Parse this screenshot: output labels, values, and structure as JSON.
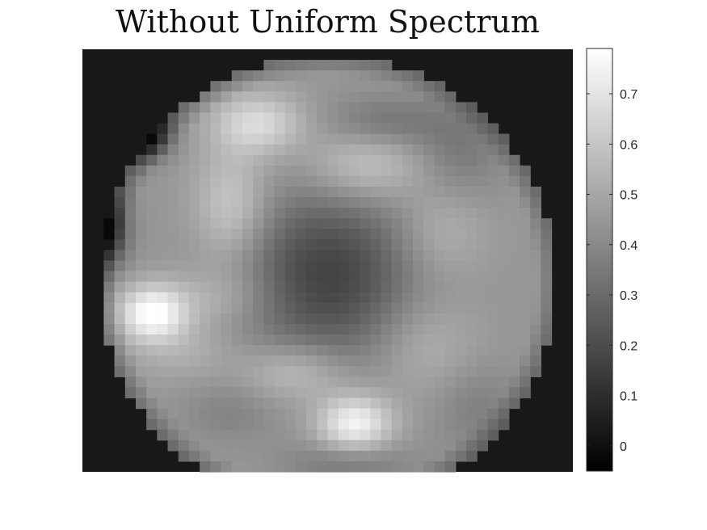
{
  "chart_data": {
    "type": "heatmap",
    "title": "Without Uniform Spectrum",
    "xlabel": "",
    "ylabel": "",
    "grid": false,
    "colormap": "gray",
    "grid_size": [
      46,
      40
    ],
    "background_value": 0.03,
    "clim": [
      -0.05,
      0.79
    ],
    "colorbar": {
      "placement": "right",
      "ticks": [
        0,
        0.1,
        0.2,
        0.3,
        0.4,
        0.5,
        0.6,
        0.7
      ],
      "tick_labels": [
        "0",
        "0.1",
        "0.2",
        "0.3",
        "0.4",
        "0.5",
        "0.6",
        "0.7"
      ]
    },
    "disc": {
      "center": [
        22.5,
        21.5
      ],
      "radius": 21.5
    },
    "features": [
      {
        "kind": "base",
        "value": 0.45
      },
      {
        "kind": "dip",
        "center": [
          22.5,
          21.0
        ],
        "spread": [
          6.0,
          6.0
        ],
        "amplitude": 0.28
      },
      {
        "kind": "peak",
        "center": [
          6.0,
          24.5
        ],
        "spread": [
          2.2,
          1.8
        ],
        "amplitude": 0.34
      },
      {
        "kind": "peak",
        "center": [
          25.0,
          35.0
        ],
        "spread": [
          2.5,
          2.0
        ],
        "amplitude": 0.32
      },
      {
        "kind": "peak",
        "center": [
          16.0,
          6.5
        ],
        "spread": [
          3.0,
          2.0
        ],
        "amplitude": 0.22
      },
      {
        "kind": "peak",
        "center": [
          26.0,
          10.5
        ],
        "spread": [
          4.0,
          2.5
        ],
        "amplitude": 0.17
      },
      {
        "kind": "peak",
        "center": [
          13.5,
          14.5
        ],
        "spread": [
          2.5,
          4.0
        ],
        "amplitude": 0.18
      },
      {
        "kind": "peak",
        "center": [
          19.5,
          30.0
        ],
        "spread": [
          3.5,
          2.0
        ],
        "amplitude": 0.16
      },
      {
        "kind": "peak",
        "center": [
          33.0,
          17.0
        ],
        "spread": [
          3.0,
          3.0
        ],
        "amplitude": 0.1
      },
      {
        "kind": "peak",
        "center": [
          31.5,
          27.5
        ],
        "spread": [
          3.5,
          3.5
        ],
        "amplitude": 0.1
      },
      {
        "kind": "peak",
        "center": [
          9.0,
          28.0
        ],
        "spread": [
          3.5,
          2.0
        ],
        "amplitude": 0.08
      },
      {
        "kind": "peak",
        "center": [
          12.0,
          23.0
        ],
        "spread": [
          4.0,
          2.0
        ],
        "amplitude": 0.1
      },
      {
        "kind": "dip",
        "center": [
          5.0,
          7.5
        ],
        "spread": [
          1.8,
          1.6
        ],
        "amplitude": 0.45
      },
      {
        "kind": "dip",
        "center": [
          1.5,
          16.5
        ],
        "spread": [
          1.5,
          2.5
        ],
        "amplitude": 0.4
      },
      {
        "kind": "dip",
        "center": [
          28.0,
          6.5
        ],
        "spread": [
          4.0,
          1.8
        ],
        "amplitude": 0.12
      },
      {
        "kind": "dip",
        "center": [
          35.0,
          9.0
        ],
        "spread": [
          3.0,
          3.0
        ],
        "amplitude": 0.1
      },
      {
        "kind": "dip",
        "center": [
          24.5,
          38.5
        ],
        "spread": [
          4.0,
          1.5
        ],
        "amplitude": 0.12
      },
      {
        "kind": "dip",
        "center": [
          36.5,
          33.5
        ],
        "spread": [
          3.0,
          3.0
        ],
        "amplitude": 0.08
      },
      {
        "kind": "dip",
        "center": [
          13.0,
          34.0
        ],
        "spread": [
          3.0,
          2.0
        ],
        "amplitude": 0.06
      }
    ],
    "edge_falloff": {
      "start_radius": 19.5,
      "amplitude": 0.16,
      "min_value": -0.02
    }
  }
}
